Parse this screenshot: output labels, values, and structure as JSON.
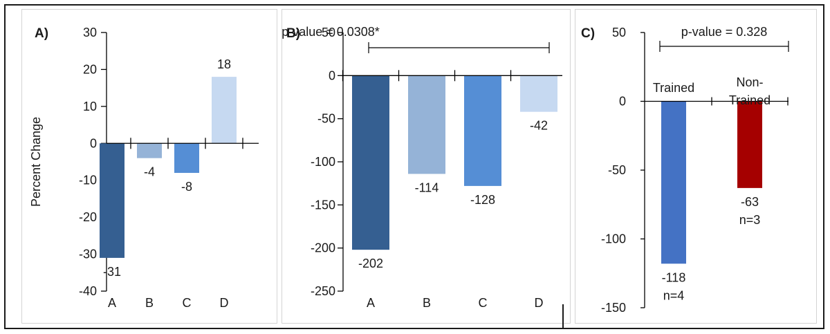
{
  "chart_data": [
    {
      "panel_label": "A)",
      "type": "bar",
      "title": "",
      "xlabel": "",
      "ylabel": "Percent Change",
      "categories": [
        "A",
        "B",
        "C",
        "D"
      ],
      "values": [
        -31,
        -4,
        -8,
        18
      ],
      "data_labels": [
        "-31",
        "-4",
        "-8",
        "18"
      ],
      "colors": [
        "#355f91",
        "#95b3d7",
        "#558ed5",
        "#c6d9f1"
      ],
      "ylim": [
        -40,
        30
      ],
      "yticks": [
        30,
        20,
        10,
        0,
        -10,
        -20,
        -30,
        -40
      ],
      "grid": false,
      "legend": "none"
    },
    {
      "panel_label": "B)",
      "type": "bar",
      "title": "",
      "xlabel": "",
      "ylabel": "",
      "categories": [
        "A",
        "B",
        "C",
        "D"
      ],
      "values": [
        -202,
        -114,
        -128,
        -42
      ],
      "data_labels": [
        "-202",
        "-114",
        "-128",
        "-42"
      ],
      "colors": [
        "#355f91",
        "#95b3d7",
        "#558ed5",
        "#c6d9f1"
      ],
      "ylim": [
        -250,
        50
      ],
      "yticks": [
        50,
        0,
        -50,
        -100,
        -150,
        -200,
        -250
      ],
      "grid": false,
      "legend": "none",
      "annotation": "p-value = 0.0308*"
    },
    {
      "panel_label": "C)",
      "type": "bar",
      "title": "",
      "xlabel": "",
      "ylabel": "",
      "categories": [
        "Trained",
        "Non-Trained"
      ],
      "category_lines": [
        [
          "Trained"
        ],
        [
          "Non-",
          "Trained"
        ]
      ],
      "values": [
        -118,
        -63
      ],
      "data_labels": [
        "-118",
        "-63"
      ],
      "n_labels": [
        "n=4",
        "n=3"
      ],
      "colors": [
        "#4472c4",
        "#a50000"
      ],
      "ylim": [
        -150,
        50
      ],
      "yticks": [
        50,
        0,
        -50,
        -100,
        -150
      ],
      "grid": false,
      "legend": "none",
      "annotation": "p-value = 0.328"
    }
  ]
}
